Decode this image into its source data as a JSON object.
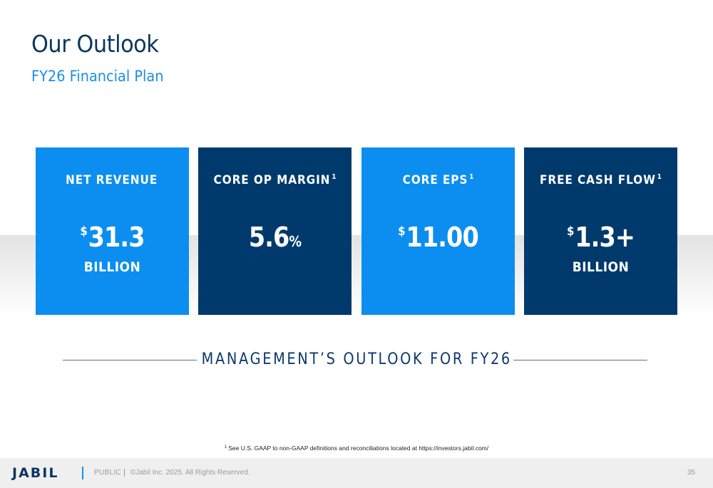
{
  "header": {
    "title": "Our Outlook",
    "subtitle": "FY26 Financial Plan"
  },
  "cards": [
    {
      "label": "NET REVENUE",
      "sup": "",
      "prefix": "$",
      "value": "31.3",
      "suffix": "",
      "unit": "BILLION",
      "color": "#0b8ef0"
    },
    {
      "label": "CORE OP MARGIN",
      "sup": "1",
      "prefix": "",
      "value": "5.6",
      "suffix": "%",
      "unit": "",
      "color": "#003a6c"
    },
    {
      "label": "CORE EPS",
      "sup": "1",
      "prefix": "$",
      "value": "11.00",
      "suffix": "",
      "unit": "",
      "color": "#0b8ef0"
    },
    {
      "label": "FREE CASH FLOW",
      "sup": "1",
      "prefix": "$",
      "value": "1.3+",
      "suffix": "",
      "unit": "BILLION",
      "color": "#003a6c"
    }
  ],
  "outlook_caption": "MANAGEMENT’S OUTLOOK FOR FY26",
  "footnote": {
    "marker": "1",
    "text": "See U.S. GAAP to non-GAAP definitions and reconciliations located at https://investors.jabil.com/"
  },
  "footer": {
    "logo": "JABIL",
    "classification": "PUBLIC",
    "copyright": "©Jabil Inc. 2025. All Rights Reserved.",
    "page_number": "35"
  }
}
